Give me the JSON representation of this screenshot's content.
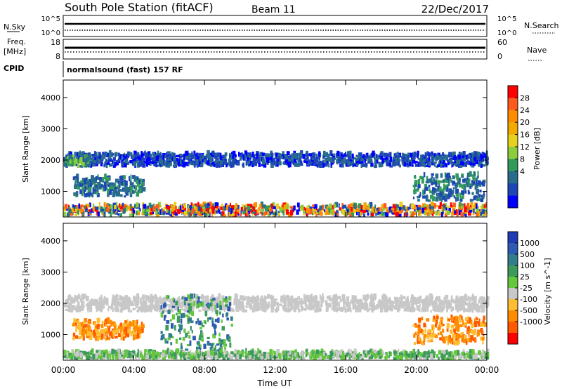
{
  "header": {
    "station": "South Pole Station (fitACF)",
    "beam": "Beam 11",
    "date": "22/Dec/2017"
  },
  "aux": {
    "nsky_label": "N.Sky",
    "nsky_ticks": [
      "10^5",
      "10^0"
    ],
    "nsearch_label": "N.Search",
    "nsearch_ticks": [
      "10^5",
      "10^0"
    ],
    "freq_label": "Freq.",
    "freq_unit": "[MHz]",
    "freq_ticks": [
      "18",
      "8"
    ],
    "nave_label": "Nave",
    "nave_ticks": [
      "60",
      "0"
    ],
    "cpid_label": "CPID",
    "cpid_text": "normalsound (fast) 157 RF"
  },
  "chart_data": [
    {
      "type": "heatmap",
      "name": "power",
      "ylabel": "Slant Range [km]",
      "xlabel": "",
      "ylim": [
        180,
        4560
      ],
      "yticks": [
        "4000",
        "3000",
        "2000",
        "1000"
      ],
      "xlim": [
        0,
        24
      ],
      "colorbar": {
        "label": "Power [dB]",
        "ticks": [
          "28",
          "24",
          "20",
          "16",
          "12",
          "8",
          "4"
        ],
        "colors": [
          "#ff0000",
          "#ff5a1e",
          "#ff8c00",
          "#f0aa00",
          "#e6d21e",
          "#8ccd3c",
          "#329b5a",
          "#286e8c",
          "#1e46b4",
          "#0000ff"
        ]
      },
      "regions": [
        {
          "label": "band-2000km",
          "start_h": 0.0,
          "end_h": 24.0,
          "range_km": [
            1750,
            2150
          ],
          "level": "low"
        },
        {
          "label": "band-2000km-strong",
          "start_h": 0.0,
          "end_h": 1.5,
          "range_km": [
            1750,
            2050
          ],
          "level": "mid"
        },
        {
          "label": "band-1000km-morning",
          "start_h": 0.5,
          "end_h": 4.5,
          "range_km": [
            800,
            1400
          ],
          "level": "low-mid"
        },
        {
          "label": "patch-0800UT",
          "start_h": 7.0,
          "end_h": 8.3,
          "range_km": [
            200,
            500
          ],
          "level": "high"
        },
        {
          "label": "band-1000km-evening",
          "start_h": 19.8,
          "end_h": 23.8,
          "range_km": [
            650,
            1500
          ],
          "level": "low-mid"
        },
        {
          "label": "ground-scatter-noise",
          "start_h": 0.0,
          "end_h": 24.0,
          "range_km": [
            180,
            500
          ],
          "level": "mixed"
        }
      ]
    },
    {
      "type": "heatmap",
      "name": "velocity",
      "ylabel": "Slant Range [km]",
      "xlabel": "Time UT",
      "ylim": [
        180,
        4560
      ],
      "yticks": [
        "4000",
        "3000",
        "2000",
        "1000"
      ],
      "xlim": [
        0,
        24
      ],
      "xticks": [
        "00:00",
        "04:00",
        "08:00",
        "12:00",
        "16:00",
        "20:00",
        "00:00"
      ],
      "colorbar": {
        "label": "Velocity [m s^-1]",
        "ticks": [
          "1000",
          "500",
          "100",
          "25",
          "-25",
          "-100",
          "-500",
          "-1000"
        ],
        "colors": [
          "#1e3cb4",
          "#2d5ab4",
          "#327d8c",
          "#3c9b5a",
          "#64c83c",
          "#c8c8c8",
          "#ffbe32",
          "#ff8c00",
          "#ff5a00",
          "#ff0000"
        ]
      },
      "regions": [
        {
          "label": "ground-scatter-band-2000km",
          "start_h": 0.0,
          "end_h": 24.0,
          "range_km": [
            1700,
            2150
          ],
          "velocity_m_s": 0
        },
        {
          "label": "flow-toward-1000km-morning",
          "start_h": 0.5,
          "end_h": 4.5,
          "range_km": [
            800,
            1400
          ],
          "velocity_m_s": -300
        },
        {
          "label": "flow-mixed-0600-0900",
          "start_h": 5.5,
          "end_h": 9.5,
          "range_km": [
            200,
            2200
          ],
          "velocity_m_s": 200
        },
        {
          "label": "flow-toward-1000km-evening",
          "start_h": 19.8,
          "end_h": 23.8,
          "range_km": [
            650,
            1500
          ],
          "velocity_m_s": -300
        },
        {
          "label": "low-range-scatter",
          "start_h": 0.0,
          "end_h": 24.0,
          "range_km": [
            180,
            400
          ],
          "velocity_m_s": 50
        }
      ]
    }
  ]
}
